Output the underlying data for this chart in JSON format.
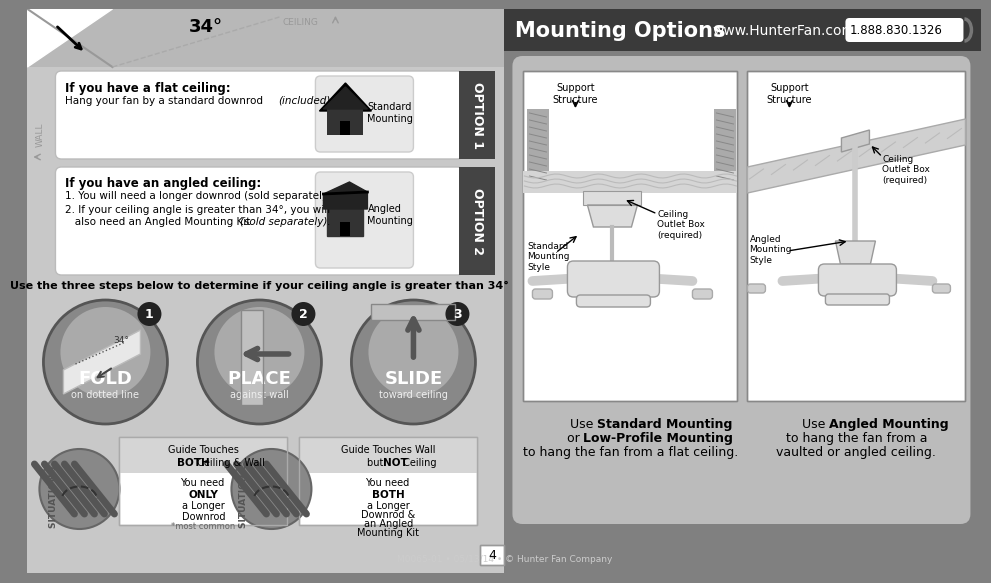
{
  "bg_color": "#808080",
  "white": "#ffffff",
  "black": "#000000",
  "dark_gray": "#404040",
  "medium_gray": "#999999",
  "light_gray": "#d0d0d0",
  "circle_bg": "#777777",
  "title_text": "Mounting Options",
  "website_text": "www.HunterFan.com",
  "phone_text": "1.888.830.1326",
  "footer_text": "M0065-01 • 05/13/14 • © Hunter Fan Company",
  "page_num": "4",
  "option1_title": "OPTION 1",
  "option2_title": "OPTION 2",
  "fold_label": "FOLD",
  "fold_sub": "on dotted line",
  "place_label": "PLACE",
  "place_sub": "against wall",
  "slide_label": "SLIDE",
  "slide_sub": "toward ceiling",
  "sit1_label": "SITUATION 1",
  "sit2_label": "SITUATION 2",
  "guide1_title": "Guide Touches",
  "guide1_bold": "BOTH",
  "guide1_text": " Ceiling & Wall",
  "guide1_note": "*most common",
  "guide2_title": "Guide Touches Wall",
  "guide2_bold": "NOT",
  "flat_ceiling_title": "If you have a flat ceiling:",
  "flat_ceiling_body": "Hang your fan by a standard downrod (included).",
  "angled_ceiling_title": "If you have an angled ceiling:",
  "angled_ceiling_body1": "1. You will need a longer downrod (sold separately).",
  "angled_ceiling_body2": "2. If your ceiling angle is greater than 34°, you will\n   also need an Angled Mounting Kit (sold separately).",
  "steps_title": "Use the three steps below to determine if your ceiling angle is greater than 34°",
  "standard_mounting": "Standard\nMounting",
  "angled_mounting": "Angled\nMounting",
  "wall_text": "WALL",
  "ceiling_text": "CEILING"
}
